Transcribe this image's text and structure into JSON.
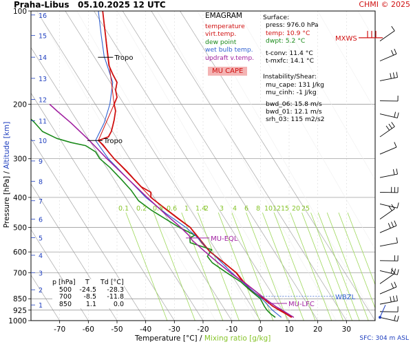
{
  "header": {
    "station": "Praha-Libus",
    "time": "05.10.2025 12 UTC",
    "credit": "CHMI © 2025"
  },
  "legend": {
    "title": "EMAGRAM",
    "items": [
      {
        "label": "temperature",
        "color": "#d01010"
      },
      {
        "label": "virt.temp.",
        "color": "#d01010"
      },
      {
        "label": "dew point",
        "color": "#1a8a1a"
      },
      {
        "label": "wet bulb temp.",
        "color": "#3060d0"
      },
      {
        "label": "updraft v.temp.",
        "color": "#a020a0"
      }
    ],
    "badge": "MU CAPE",
    "badge_color": "#f4b4b4"
  },
  "surface": {
    "title": "Surface:",
    "lines": [
      {
        "text": "press: 976.0 hPa",
        "color": "#000000"
      },
      {
        "text": "temp: 10.9 °C",
        "color": "#d01010"
      },
      {
        "text": "dwpt: 5.2 °C",
        "color": "#1a8a1a"
      }
    ],
    "conv": [
      "t-conv: 11.4 °C",
      "t-mxfc: 14.1 °C"
    ]
  },
  "instability": {
    "title": "Instability/Shear:",
    "lines": [
      "mu_cape: 131 J/kg",
      "mu_cinh: -1 J/kg",
      "bwd_06: 15.8 m/s",
      "bwd_01: 12.1 m/s",
      "srh_03: 115 m2/s2"
    ]
  },
  "levels_table": {
    "headers": [
      "p [hPa]",
      "T",
      "Td [°C]"
    ],
    "rows": [
      [
        "500",
        "-24.5",
        "-28.3"
      ],
      [
        "700",
        "-8.5",
        "-11.8"
      ],
      [
        "850",
        "1.1",
        "0.0"
      ]
    ]
  },
  "annotations": {
    "tropo": "Tropo",
    "mu_eql": "MU-EQL",
    "mu_lfc": "MU-LFC",
    "wbzl": "WBZL",
    "mxws": "MXWS",
    "sfc": "SFC: 304 m ASL"
  },
  "axes": {
    "xlabel_a": "Temperature [°C]",
    "xlabel_sep": " / ",
    "xlabel_b": "Mixing ratio [g/kg]",
    "ylabel_a": "Pressure [hPa]",
    "ylabel_sep": " / ",
    "ylabel_b": "Altitude [km]"
  },
  "chart_data": {
    "type": "line",
    "y_scale": "log-pressure",
    "ylim": [
      1000,
      100
    ],
    "xlim": [
      -80,
      40
    ],
    "x_ticks": [
      -70,
      -60,
      -50,
      -40,
      -30,
      -20,
      -10,
      0,
      10,
      20,
      30
    ],
    "p_ticks": [
      100,
      200,
      300,
      400,
      500,
      600,
      700,
      850,
      925,
      1000
    ],
    "alt_ticks_km": [
      {
        "km": "1",
        "p": 890
      },
      {
        "km": "2",
        "p": 795
      },
      {
        "km": "3",
        "p": 700
      },
      {
        "km": "4",
        "p": 615
      },
      {
        "km": "5",
        "p": 540
      },
      {
        "km": "6",
        "p": 470
      },
      {
        "km": "7",
        "p": 410
      },
      {
        "km": "8",
        "p": 355
      },
      {
        "km": "9",
        "p": 305
      },
      {
        "km": "10",
        "p": 262
      },
      {
        "km": "11",
        "p": 226
      },
      {
        "km": "12",
        "p": 193
      },
      {
        "km": "13",
        "p": 165
      },
      {
        "km": "14",
        "p": 141
      },
      {
        "km": "15",
        "p": 120
      },
      {
        "km": "16",
        "p": 103
      }
    ],
    "mixing_ratio_labels": [
      "0.1",
      "0.2",
      "0.4",
      "0.6",
      "1",
      "1.4",
      "2",
      "3",
      "4",
      "6",
      "8",
      "10",
      "12",
      "15",
      "20",
      "25"
    ],
    "mixing_ratio_g_kg": [
      0.1,
      0.2,
      0.4,
      0.6,
      1,
      1.4,
      2,
      3,
      4,
      6,
      8,
      10,
      12,
      15,
      20,
      25
    ],
    "mixing_label_pressure": 430,
    "grid": true,
    "series": [
      {
        "name": "temperature",
        "color": "#d01010",
        "width": 1.8,
        "points": [
          [
            976,
            10.9
          ],
          [
            950,
            8.8
          ],
          [
            925,
            6.6
          ],
          [
            900,
            4.4
          ],
          [
            850,
            1.1
          ],
          [
            800,
            -3.2
          ],
          [
            750,
            -6.0
          ],
          [
            700,
            -8.5
          ],
          [
            650,
            -12.7
          ],
          [
            600,
            -17.5
          ],
          [
            560,
            -20.5
          ],
          [
            530,
            -22.4
          ],
          [
            500,
            -24.5
          ],
          [
            470,
            -28.5
          ],
          [
            440,
            -32.5
          ],
          [
            415,
            -36.0
          ],
          [
            400,
            -38.2
          ],
          [
            385,
            -38.2
          ],
          [
            370,
            -41.5
          ],
          [
            350,
            -44.0
          ],
          [
            330,
            -46.5
          ],
          [
            300,
            -51.0
          ],
          [
            285,
            -53.0
          ],
          [
            270,
            -55.0
          ],
          [
            262,
            -56.5
          ],
          [
            255,
            -53.0
          ],
          [
            245,
            -52.0
          ],
          [
            235,
            -51.5
          ],
          [
            225,
            -51.0
          ],
          [
            210,
            -50.5
          ],
          [
            200,
            -51.0
          ],
          [
            190,
            -50.0
          ],
          [
            180,
            -50.5
          ],
          [
            170,
            -50.0
          ],
          [
            160,
            -51.5
          ],
          [
            150,
            -52.8
          ],
          [
            140,
            -53.2
          ],
          [
            130,
            -53.6
          ],
          [
            120,
            -54.0
          ],
          [
            110,
            -54.5
          ],
          [
            100,
            -55.0
          ]
        ]
      },
      {
        "name": "dew point",
        "color": "#1a8a1a",
        "width": 1.6,
        "points": [
          [
            976,
            5.2
          ],
          [
            950,
            3.5
          ],
          [
            925,
            2.3
          ],
          [
            900,
            1.4
          ],
          [
            850,
            0.0
          ],
          [
            800,
            -3.5
          ],
          [
            750,
            -6.8
          ],
          [
            700,
            -11.8
          ],
          [
            650,
            -16.8
          ],
          [
            620,
            -18.5
          ],
          [
            590,
            -17.0
          ],
          [
            560,
            -24.5
          ],
          [
            540,
            -24.6
          ],
          [
            530,
            -22.8
          ],
          [
            500,
            -28.3
          ],
          [
            470,
            -33.0
          ],
          [
            440,
            -38.0
          ],
          [
            410,
            -42.5
          ],
          [
            380,
            -45.0
          ],
          [
            350,
            -48.5
          ],
          [
            320,
            -52.5
          ],
          [
            300,
            -56.0
          ],
          [
            285,
            -57.5
          ],
          [
            272,
            -61.0
          ],
          [
            266,
            -66.0
          ],
          [
            258,
            -71.0
          ],
          [
            245,
            -76.0
          ],
          [
            228,
            -79.0
          ],
          [
            215,
            -82.0
          ]
        ]
      },
      {
        "name": "wet bulb temp.",
        "color": "#3060d0",
        "width": 1.1,
        "points": [
          [
            976,
            7.3
          ],
          [
            925,
            4.2
          ],
          [
            850,
            0.5
          ],
          [
            750,
            -6.3
          ],
          [
            700,
            -10.0
          ],
          [
            600,
            -17.3
          ],
          [
            530,
            -22.8
          ],
          [
            500,
            -26.0
          ],
          [
            450,
            -33.0
          ],
          [
            400,
            -40.0
          ],
          [
            350,
            -46.0
          ],
          [
            300,
            -53.0
          ],
          [
            262,
            -57.5
          ],
          [
            230,
            -54.5
          ],
          [
            200,
            -52.5
          ],
          [
            170,
            -51.5
          ],
          [
            140,
            -54.5
          ],
          [
            120,
            -55.5
          ],
          [
            100,
            -56.5
          ]
        ]
      },
      {
        "name": "virt.temp.",
        "color": "#d01010",
        "width": 1.0,
        "points": [
          [
            976,
            11.6
          ],
          [
            925,
            7.2
          ],
          [
            850,
            1.6
          ],
          [
            750,
            -5.7
          ],
          [
            700,
            -8.3
          ],
          [
            600,
            -17.4
          ],
          [
            500,
            -24.4
          ],
          [
            400,
            -38.2
          ],
          [
            300,
            -51.0
          ],
          [
            262,
            -56.5
          ],
          [
            200,
            -51.0
          ],
          [
            100,
            -55.0
          ]
        ]
      },
      {
        "name": "updraft v.temp.",
        "color": "#a020a0",
        "width": 1.6,
        "points": [
          [
            976,
            11.6
          ],
          [
            950,
            9.6
          ],
          [
            925,
            7.6
          ],
          [
            900,
            5.3
          ],
          [
            850,
            1.6
          ],
          [
            800,
            -2.0
          ],
          [
            750,
            -6.0
          ],
          [
            700,
            -10.5
          ],
          [
            650,
            -14.8
          ],
          [
            600,
            -19.2
          ],
          [
            550,
            -23.8
          ],
          [
            530,
            -25.0
          ],
          [
            500,
            -27.8
          ],
          [
            450,
            -33.5
          ],
          [
            400,
            -39.5
          ],
          [
            350,
            -46.0
          ],
          [
            300,
            -53.5
          ],
          [
            260,
            -60.0
          ],
          [
            230,
            -66.0
          ],
          [
            210,
            -71.0
          ],
          [
            200,
            -73.5
          ]
        ]
      }
    ]
  }
}
